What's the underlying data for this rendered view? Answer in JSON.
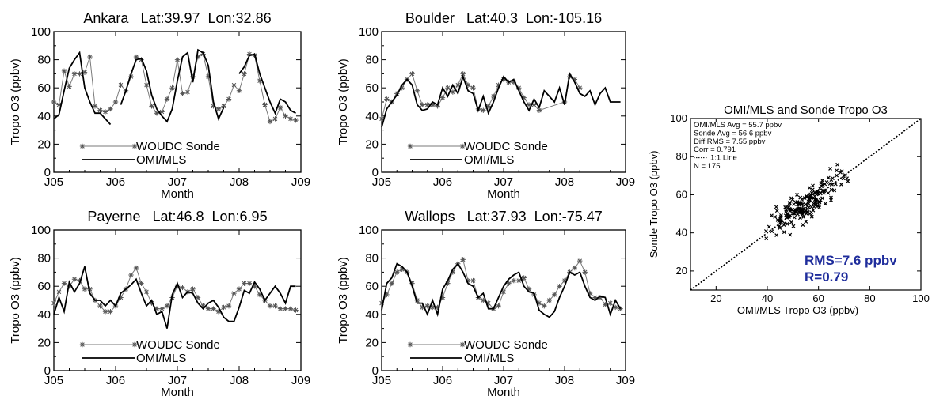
{
  "chart_data": [
    {
      "type": "line",
      "title": "Ankara   Lat:39.97  Lon:32.86",
      "xlabel": "Month",
      "ylabel": "Tropo O3 (ppbv)",
      "x_ticks": [
        "J05",
        "J06",
        "J07",
        "J08",
        "J09"
      ],
      "y_ticks": [
        "0",
        "20",
        "40",
        "60",
        "80",
        "100"
      ],
      "xlim": [
        0,
        48
      ],
      "ylim": [
        0,
        100
      ],
      "legend_location": "lower-left",
      "series": [
        {
          "name": "WOUDC Sonde",
          "style": "gray-asterisk",
          "x": [
            0,
            1,
            2,
            3,
            4,
            5,
            6,
            7,
            8,
            9,
            10,
            11,
            12,
            13,
            14,
            15,
            16,
            17,
            18,
            19,
            20,
            21,
            22,
            23,
            24,
            25,
            26,
            27,
            28,
            29,
            30,
            31,
            32,
            33,
            34,
            35,
            36,
            37,
            38,
            39,
            40,
            41,
            42,
            43,
            44,
            45,
            46,
            47
          ],
          "y": [
            50,
            48,
            72,
            61,
            70,
            70,
            71,
            82,
            47,
            44,
            43,
            45,
            50,
            62,
            58,
            68,
            82,
            80,
            62,
            47,
            42,
            43,
            52,
            60,
            80,
            56,
            57,
            68,
            82,
            84,
            68,
            47,
            45,
            47,
            52,
            62,
            58,
            70,
            84,
            83,
            65,
            48,
            36,
            38,
            46,
            40,
            38,
            37
          ]
        },
        {
          "name": "OMI/MLS",
          "style": "black-line",
          "x": [
            0,
            1,
            2,
            3,
            4,
            5,
            6,
            7,
            8,
            9,
            10,
            11,
            13,
            14,
            15,
            16,
            17,
            18,
            19,
            20,
            21,
            22,
            23,
            24,
            25,
            26,
            27,
            28,
            29,
            30,
            31,
            32,
            33,
            36,
            37,
            38,
            39,
            40,
            41,
            42,
            43,
            44,
            45,
            46,
            47
          ],
          "y": [
            38,
            41,
            58,
            74,
            80,
            85,
            60,
            50,
            42,
            42,
            38,
            34,
            48,
            58,
            70,
            80,
            81,
            72,
            55,
            45,
            40,
            36,
            45,
            65,
            82,
            85,
            64,
            87,
            85,
            76,
            50,
            38,
            46,
            70,
            75,
            83,
            84,
            70,
            60,
            50,
            42,
            52,
            50,
            44,
            42
          ]
        }
      ]
    },
    {
      "type": "line",
      "title": "Boulder   Lat:40.3  Lon:-105.16",
      "xlabel": "Month",
      "ylabel": "Tropo O3 (ppbv)",
      "x_ticks": [
        "J05",
        "J06",
        "J07",
        "J08",
        "J09"
      ],
      "y_ticks": [
        "0",
        "20",
        "40",
        "60",
        "80",
        "100"
      ],
      "xlim": [
        0,
        48
      ],
      "ylim": [
        0,
        100
      ],
      "legend_location": "lower-left",
      "series": [
        {
          "name": "WOUDC Sonde",
          "style": "gray-asterisk",
          "x": [
            0,
            1,
            2,
            3,
            4,
            5,
            6,
            7,
            8,
            9,
            10,
            11,
            12,
            13,
            14,
            15,
            16,
            17,
            18,
            19,
            20,
            21,
            22,
            23,
            24,
            25,
            26,
            27,
            28,
            29,
            30,
            31,
            36,
            37,
            38,
            39
          ],
          "y": [
            38,
            52,
            50,
            56,
            60,
            66,
            70,
            58,
            48,
            48,
            48,
            47,
            53,
            60,
            57,
            62,
            70,
            62,
            60,
            45,
            44,
            47,
            54,
            62,
            66,
            64,
            64,
            60,
            53,
            48,
            48,
            44,
            50,
            68,
            66,
            60
          ]
        },
        {
          "name": "OMI/MLS",
          "style": "black-line",
          "x": [
            0,
            1,
            2,
            3,
            4,
            5,
            6,
            7,
            8,
            9,
            10,
            11,
            12,
            13,
            14,
            15,
            16,
            17,
            18,
            19,
            20,
            21,
            22,
            23,
            24,
            25,
            26,
            27,
            28,
            29,
            30,
            31,
            32,
            33,
            34,
            35,
            36,
            37,
            38,
            39,
            40,
            41,
            42,
            43,
            44,
            45,
            46,
            47
          ],
          "y": [
            32,
            45,
            50,
            55,
            62,
            66,
            62,
            48,
            44,
            45,
            50,
            48,
            60,
            54,
            62,
            56,
            68,
            58,
            56,
            44,
            54,
            42,
            50,
            60,
            68,
            64,
            66,
            58,
            50,
            44,
            52,
            46,
            58,
            54,
            50,
            60,
            48,
            70,
            64,
            56,
            54,
            58,
            48,
            56,
            60,
            50,
            50,
            50
          ]
        }
      ]
    },
    {
      "type": "line",
      "title": "Payerne   Lat:46.8  Lon:6.95",
      "xlabel": "Month",
      "ylabel": "Tropo O3 (ppbv)",
      "x_ticks": [
        "J05",
        "J06",
        "J07",
        "J08",
        "J09"
      ],
      "y_ticks": [
        "0",
        "20",
        "40",
        "60",
        "80",
        "100"
      ],
      "xlim": [
        0,
        48
      ],
      "ylim": [
        0,
        100
      ],
      "legend_location": "lower-left",
      "series": [
        {
          "name": "WOUDC Sonde",
          "style": "gray-asterisk",
          "x": [
            0,
            1,
            2,
            3,
            4,
            5,
            6,
            7,
            8,
            9,
            10,
            11,
            12,
            13,
            14,
            15,
            16,
            17,
            18,
            19,
            20,
            21,
            22,
            23,
            24,
            25,
            26,
            27,
            28,
            29,
            30,
            31,
            32,
            33,
            34,
            35,
            36,
            37,
            38,
            39,
            40,
            41,
            42,
            43,
            44,
            45,
            46,
            47
          ],
          "y": [
            48,
            56,
            62,
            60,
            65,
            64,
            58,
            58,
            50,
            46,
            42,
            42,
            46,
            52,
            58,
            68,
            73,
            62,
            56,
            48,
            44,
            44,
            46,
            52,
            60,
            59,
            56,
            58,
            52,
            46,
            44,
            44,
            42,
            45,
            46,
            55,
            58,
            62,
            62,
            60,
            54,
            50,
            46,
            46,
            44,
            44,
            44,
            43
          ]
        },
        {
          "name": "OMI/MLS",
          "style": "black-line",
          "x": [
            0,
            1,
            2,
            3,
            4,
            5,
            6,
            7,
            8,
            9,
            10,
            11,
            12,
            13,
            14,
            15,
            16,
            17,
            18,
            19,
            20,
            21,
            22,
            23,
            24,
            25,
            26,
            27,
            28,
            29,
            30,
            31,
            32,
            33,
            34,
            35,
            36,
            37,
            38,
            39,
            40,
            41,
            42,
            43,
            44,
            45,
            46,
            47
          ],
          "y": [
            40,
            52,
            42,
            63,
            56,
            62,
            74,
            55,
            50,
            50,
            46,
            50,
            46,
            55,
            58,
            61,
            65,
            55,
            46,
            50,
            40,
            42,
            30,
            54,
            62,
            52,
            56,
            55,
            48,
            44,
            48,
            50,
            45,
            38,
            35,
            35,
            45,
            57,
            55,
            63,
            58,
            50,
            55,
            60,
            55,
            48,
            60,
            60
          ]
        }
      ]
    },
    {
      "type": "line",
      "title": "Wallops   Lat:37.93  Lon:-75.47",
      "xlabel": "Month",
      "ylabel": "Tropo O3 (ppbv)",
      "x_ticks": [
        "J05",
        "J06",
        "J07",
        "J08",
        "J09"
      ],
      "y_ticks": [
        "0",
        "20",
        "40",
        "60",
        "80",
        "100"
      ],
      "xlim": [
        0,
        48
      ],
      "ylim": [
        0,
        100
      ],
      "legend_location": "lower-left",
      "series": [
        {
          "name": "WOUDC Sonde",
          "style": "gray-asterisk",
          "x": [
            0,
            1,
            2,
            3,
            4,
            5,
            6,
            7,
            8,
            9,
            10,
            11,
            12,
            13,
            14,
            15,
            16,
            17,
            18,
            19,
            20,
            21,
            22,
            23,
            24,
            25,
            26,
            27,
            28,
            29,
            30,
            31,
            32,
            33,
            34,
            35,
            36,
            37,
            38,
            39,
            40,
            41,
            42,
            43,
            44,
            45,
            46,
            47
          ],
          "y": [
            48,
            54,
            62,
            70,
            72,
            70,
            62,
            50,
            45,
            46,
            45,
            45,
            52,
            62,
            70,
            76,
            79,
            64,
            64,
            52,
            50,
            48,
            44,
            46,
            56,
            62,
            64,
            64,
            66,
            58,
            54,
            48,
            46,
            50,
            54,
            60,
            64,
            70,
            73,
            78,
            70,
            55,
            52,
            52,
            47,
            48,
            45,
            44
          ]
        },
        {
          "name": "OMI/MLS",
          "style": "black-line",
          "x": [
            0,
            1,
            2,
            3,
            4,
            5,
            6,
            7,
            8,
            9,
            10,
            11,
            12,
            13,
            14,
            15,
            16,
            17,
            18,
            19,
            20,
            21,
            22,
            23,
            24,
            25,
            26,
            27,
            28,
            29,
            30,
            31,
            32,
            33,
            34,
            35,
            36,
            37,
            38,
            39,
            40,
            41,
            42,
            43,
            44,
            45,
            46,
            47
          ],
          "y": [
            43,
            62,
            66,
            76,
            74,
            70,
            60,
            48,
            48,
            40,
            50,
            40,
            58,
            64,
            72,
            76,
            70,
            62,
            60,
            52,
            55,
            44,
            44,
            52,
            60,
            65,
            68,
            70,
            60,
            56,
            55,
            43,
            40,
            38,
            42,
            52,
            60,
            70,
            68,
            70,
            60,
            52,
            50,
            53,
            52,
            40,
            50,
            44
          ]
        }
      ]
    },
    {
      "type": "scatter",
      "title": "OMI/MLS and Sonde Tropo O3",
      "xlabel": "OMI/MLS Tropo O3 (ppbv)",
      "ylabel": "Sonde Tropo O3 (ppbv)",
      "x_ticks": [
        "20",
        "40",
        "60",
        "80",
        "100"
      ],
      "y_ticks": [
        "20",
        "40",
        "60",
        "80",
        "100"
      ],
      "xlim": [
        10,
        100
      ],
      "ylim": [
        10,
        100
      ],
      "stats": [
        "OMI/MLS Avg = 55.7 ppbv",
        "Sonde Avg = 56.6 ppbv",
        "Diff RMS = 7.55 ppbv",
        "Corr = 0.791",
        "1:1 Line",
        "N = 175"
      ],
      "rms_label": "RMS=7.6 ppbv",
      "r_label": "R=0.79",
      "accent_color": "#1f2d9c",
      "points_x": [],
      "points_y": []
    }
  ]
}
